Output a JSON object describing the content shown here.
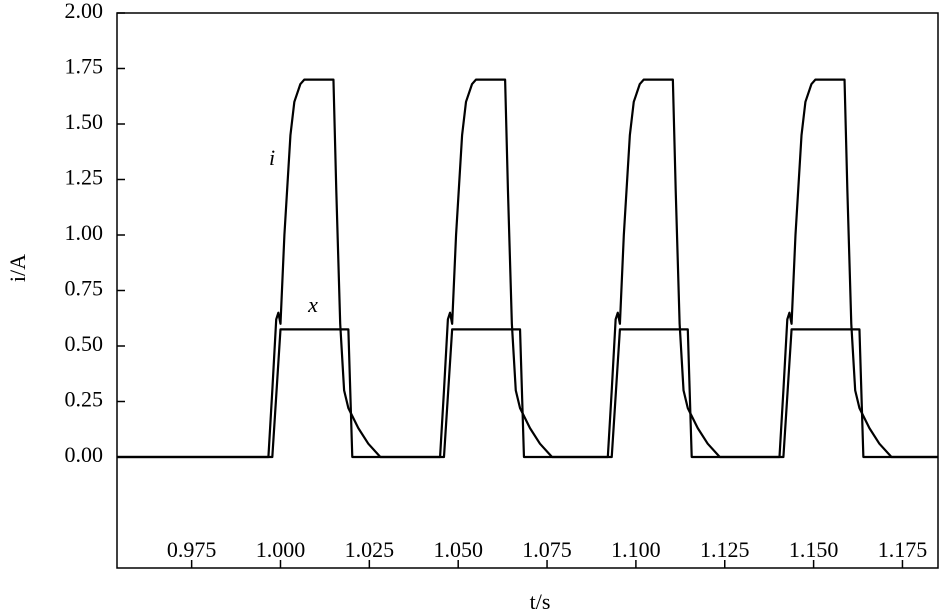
{
  "chart_data": {
    "type": "line",
    "x_label": "t/s",
    "y_label": "i/A",
    "xlim": [
      0.954,
      1.185
    ],
    "ylim": [
      -0.5,
      2.0
    ],
    "xticks": [
      0.975,
      {
        "value": 1.0,
        "label": "1.000"
      },
      1.025,
      {
        "value": 1.05,
        "label": "1.050"
      },
      1.075,
      {
        "value": 1.1,
        "label": "1.100"
      },
      1.125,
      {
        "value": 1.15,
        "label": "1.150"
      },
      1.175
    ],
    "yticks": [
      {
        "value": 0,
        "label": "0.00"
      },
      0.25,
      {
        "value": 0.5,
        "label": "0.50"
      },
      0.75,
      {
        "value": 1,
        "label": "1.00"
      },
      1.25,
      {
        "value": 1.5,
        "label": "1.50"
      },
      1.75,
      {
        "value": 2,
        "label": "2.00"
      }
    ],
    "series": [
      {
        "name": "i",
        "color": "#000000",
        "x": [
          0.954,
          0.9966,
          0.9977,
          0.9988,
          0.9994,
          1.0,
          1.0011,
          1.0028,
          1.0039,
          1.0056,
          1.0067,
          1.0149,
          1.0157,
          1.0168,
          1.0179,
          1.0191,
          1.0219,
          1.0247,
          1.0281,
          1.0449,
          1.046,
          1.0471,
          1.0477,
          1.0483,
          1.0494,
          1.0511,
          1.0522,
          1.0539,
          1.055,
          1.0632,
          1.064,
          1.0651,
          1.0662,
          1.0674,
          1.0702,
          1.073,
          1.0764,
          1.0921,
          1.0932,
          1.0943,
          1.0949,
          1.0955,
          1.0966,
          1.0983,
          1.0994,
          1.1011,
          1.1022,
          1.1104,
          1.1112,
          1.1123,
          1.1134,
          1.1146,
          1.1174,
          1.1202,
          1.1236,
          1.1404,
          1.1415,
          1.1426,
          1.1432,
          1.1438,
          1.1449,
          1.1466,
          1.1477,
          1.1494,
          1.1505,
          1.1587,
          1.1595,
          1.1606,
          1.1617,
          1.1629,
          1.1657,
          1.1685,
          1.1719,
          1.185
        ],
        "values": [
          0,
          0,
          0.3,
          0.62,
          0.65,
          0.6,
          1.0,
          1.45,
          1.6,
          1.68,
          1.7,
          1.7,
          1.2,
          0.6,
          0.3,
          0.22,
          0.13,
          0.06,
          0,
          0,
          0.3,
          0.62,
          0.65,
          0.6,
          1.0,
          1.45,
          1.6,
          1.68,
          1.7,
          1.7,
          1.2,
          0.6,
          0.3,
          0.22,
          0.13,
          0.06,
          0,
          0,
          0.3,
          0.62,
          0.65,
          0.6,
          1.0,
          1.45,
          1.6,
          1.68,
          1.7,
          1.7,
          1.2,
          0.6,
          0.3,
          0.22,
          0.13,
          0.06,
          0,
          0,
          0.3,
          0.62,
          0.65,
          0.6,
          1.0,
          1.45,
          1.6,
          1.68,
          1.7,
          1.7,
          1.2,
          0.6,
          0.3,
          0.22,
          0.13,
          0.06,
          0,
          0
        ]
      },
      {
        "name": "x",
        "color": "#000000",
        "x": [
          0.954,
          0.9977,
          1.0,
          1.0191,
          1.0202,
          1.046,
          1.0483,
          1.0674,
          1.0685,
          1.0932,
          1.0955,
          1.1146,
          1.1157,
          1.1415,
          1.1438,
          1.1629,
          1.164,
          1.185
        ],
        "values": [
          0,
          0,
          0.575,
          0.575,
          0,
          0,
          0.575,
          0.575,
          0,
          0,
          0.575,
          0.575,
          0,
          0,
          0.575,
          0.575,
          0,
          0
        ]
      }
    ]
  }
}
